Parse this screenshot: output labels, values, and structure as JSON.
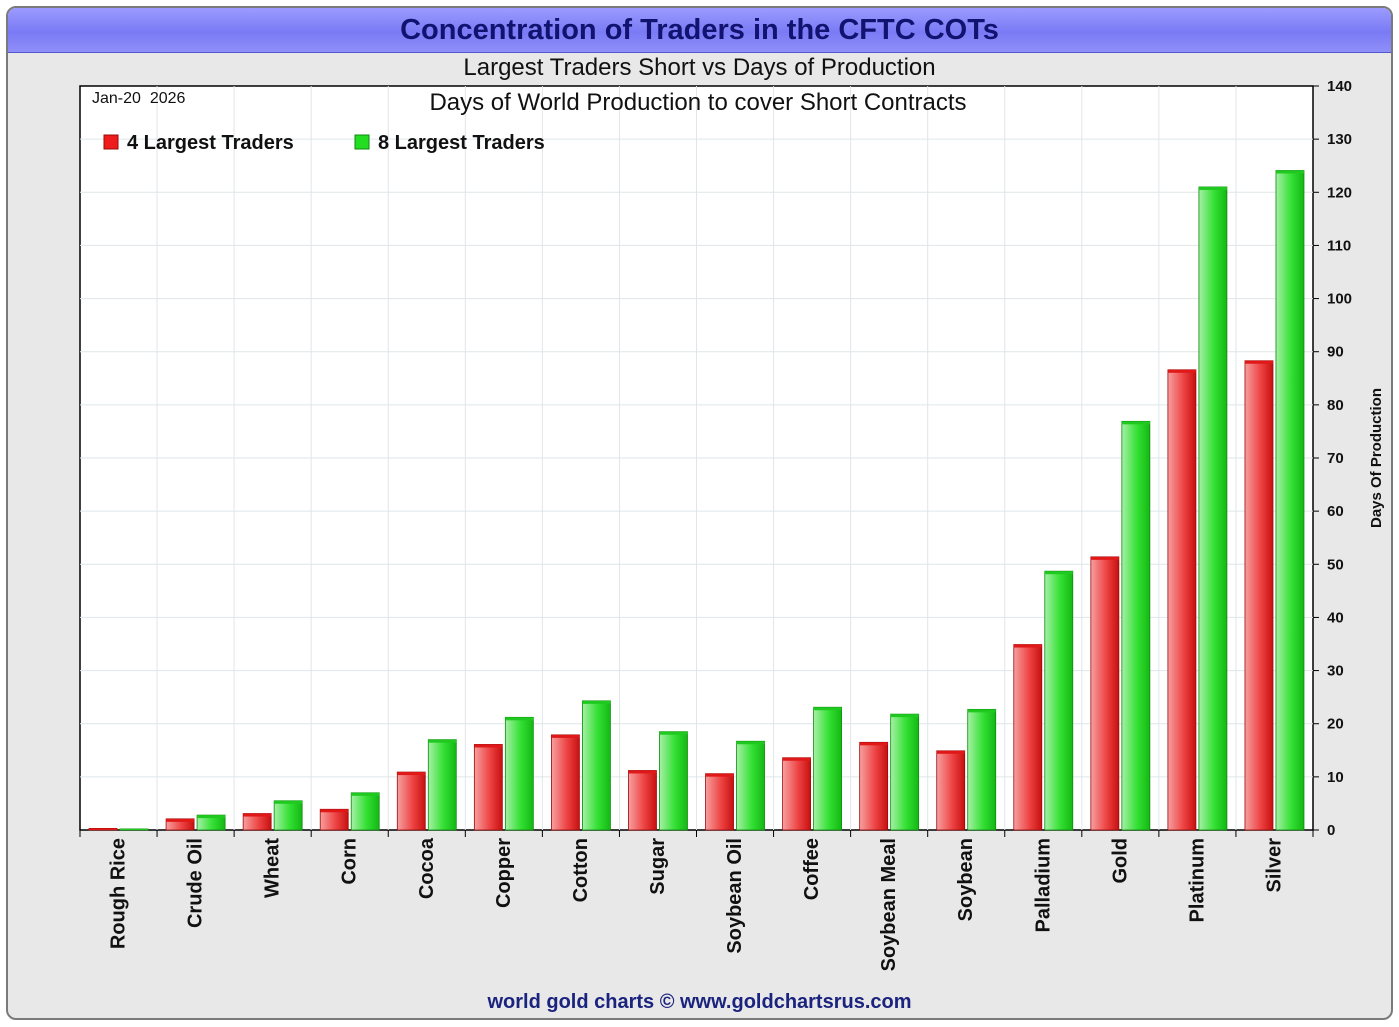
{
  "title": "Concentration of Traders in the CFTC COTs",
  "subtitle": "Largest Traders Short vs Days of Production",
  "footer": "world gold charts © www.goldchartsrus.com",
  "chart_data": {
    "type": "bar",
    "title": "Days of World Production to cover Short Contracts",
    "date_label": "Jan-20  2026",
    "ylabel": "Days Of Production",
    "ylim": [
      0,
      140
    ],
    "y_ticks": [
      0,
      10,
      20,
      30,
      40,
      50,
      60,
      70,
      80,
      90,
      100,
      110,
      120,
      130,
      140
    ],
    "grid": true,
    "legend_position": "top-left",
    "categories": [
      "Rough Rice",
      "Crude Oil",
      "Wheat",
      "Corn",
      "Cocoa",
      "Copper",
      "Cotton",
      "Sugar",
      "Soybean Oil",
      "Coffee",
      "Soybean Meal",
      "Soybean",
      "Palladium",
      "Gold",
      "Platinum",
      "Silver"
    ],
    "series": [
      {
        "name": "4 Largest Traders",
        "color": "#ee1c1c",
        "values": [
          0.3,
          2.1,
          3.1,
          3.9,
          10.9,
          16.1,
          17.9,
          11.2,
          10.6,
          13.6,
          16.5,
          14.9,
          34.9,
          51.4,
          86.6,
          88.3
        ]
      },
      {
        "name": "8 Largest Traders",
        "color": "#22dd22",
        "values": [
          0.2,
          2.8,
          5.5,
          7.0,
          17.0,
          21.2,
          24.3,
          18.5,
          16.7,
          23.1,
          21.8,
          22.7,
          48.7,
          76.9,
          121.0,
          124.1
        ]
      }
    ]
  }
}
